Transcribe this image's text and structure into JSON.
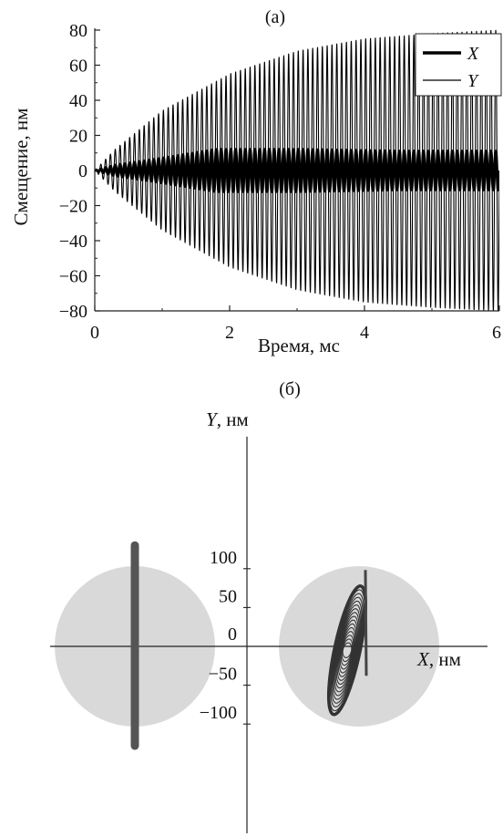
{
  "chart_data": [
    {
      "panel": "(a)",
      "type": "line",
      "xlabel": "Время, мс",
      "ylabel": "Смещение, нм",
      "xlim": [
        0,
        6
      ],
      "ylim": [
        -80,
        80
      ],
      "x_ticks": [
        "0",
        "2",
        "4",
        "6"
      ],
      "y_ticks": [
        "80",
        "60",
        "40",
        "20",
        "0",
        "−20",
        "−40",
        "−60",
        "−80"
      ],
      "legend_placement": "top-right",
      "grid": false,
      "series": [
        {
          "name": "X",
          "style": "thick",
          "color": "#000000",
          "cycles_per_ms": 14,
          "amplitude_envelope": {
            "t": [
              0,
              0.3,
              1.0,
              1.8,
              3,
              4.5,
              6
            ],
            "amp": [
              0,
              3,
              7,
              12,
              12,
              11,
              11
            ]
          }
        },
        {
          "name": "Y",
          "style": "thin",
          "color": "#000000",
          "cycles_per_ms": 14,
          "amplitude_envelope": {
            "t": [
              0,
              0.3,
              1.0,
              2.0,
              3.0,
              4.0,
              5.0,
              6.0
            ],
            "amp": [
              0,
              12,
              34,
              55,
              68,
              75,
              78,
              80
            ]
          }
        }
      ]
    },
    {
      "panel": "(б)",
      "type": "scatter",
      "xlabel": "X, нм",
      "ylabel": "Y, нм",
      "y_ticks": [
        "100",
        "50",
        "0",
        "−50",
        "−100"
      ],
      "grid": false,
      "regions": [
        {
          "name": "left-disc",
          "center_x": -123,
          "center_y": 0,
          "radius": 88,
          "color": "#d9d9d9"
        },
        {
          "name": "right-disc",
          "center_x": 123,
          "center_y": 0,
          "radius": 88,
          "color": "#d9d9d9"
        }
      ],
      "series": [
        {
          "name": "left-orbit",
          "color": "#555555",
          "x_range": [
            -124,
            -122
          ],
          "y_range": [
            -128,
            130
          ]
        },
        {
          "name": "right-orbit",
          "color": "#555555",
          "center_x": 110,
          "center_y": -5,
          "y_range": [
            -86,
            78
          ],
          "x_half_width": 12
        }
      ]
    }
  ]
}
